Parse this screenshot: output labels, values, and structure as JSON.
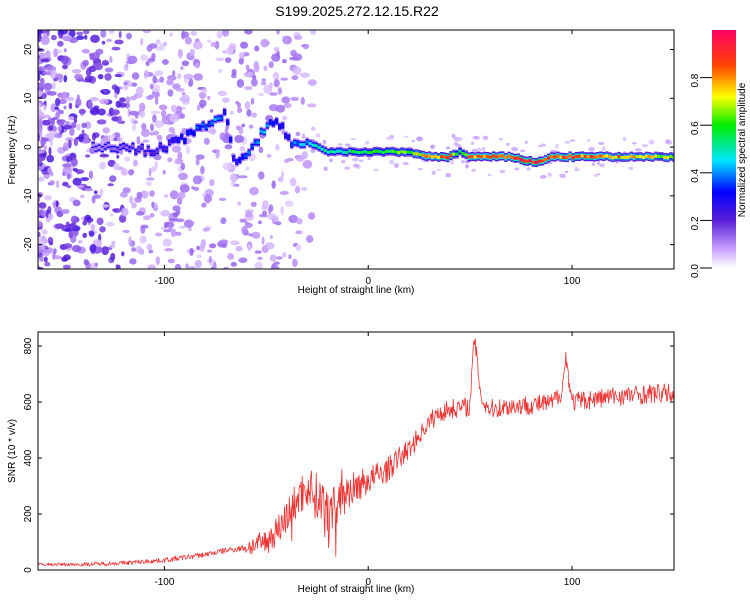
{
  "title": "S199.2025.272.12.15.R22",
  "chart_data": [
    {
      "type": "heatmap",
      "title": "S199.2025.272.12.15.R22",
      "xlabel": "Height of straight line (km)",
      "ylabel": "Frequency (Hz)",
      "xlim": [
        -162,
        150
      ],
      "ylim": [
        -25,
        24
      ],
      "xticks": [
        -100,
        0,
        100
      ],
      "yticks": [
        20,
        10,
        0,
        -10,
        -20
      ],
      "ridge": {
        "x": [
          -135,
          -120,
          -105,
          -95,
          -85,
          -75,
          -70,
          -65,
          -60,
          -55,
          -50,
          -45,
          -40,
          -35,
          -30,
          -20,
          -10,
          0,
          10,
          20,
          30,
          40,
          45,
          50,
          60,
          70,
          80,
          85,
          90,
          100,
          110,
          120,
          130,
          140,
          150
        ],
        "freq": [
          0,
          0,
          -1,
          1,
          3,
          6,
          7,
          -4,
          -2,
          1,
          4,
          6,
          2,
          0,
          1,
          -1,
          -1,
          -1,
          -1,
          -1,
          -2,
          -2,
          -1,
          -2,
          -2,
          -2,
          -3,
          -3,
          -2,
          -2,
          -2,
          -2,
          -2,
          -2,
          -2
        ],
        "amplitude": [
          0.1,
          0.15,
          0.2,
          0.25,
          0.35,
          0.4,
          0.3,
          0.25,
          0.35,
          0.4,
          0.45,
          0.3,
          0.25,
          0.4,
          0.45,
          0.5,
          0.55,
          0.55,
          0.6,
          0.65,
          0.8,
          0.85,
          0.5,
          0.85,
          0.85,
          0.9,
          0.95,
          0.9,
          0.85,
          0.85,
          0.85,
          0.8,
          0.8,
          0.75,
          0.7
        ]
      },
      "colorbar": {
        "label": "Normalized spectral amplitude",
        "range": [
          0,
          1
        ],
        "ticks": [
          "0.0",
          "0.2",
          "0.4",
          "0.6",
          "0.8"
        ]
      }
    },
    {
      "type": "line",
      "xlabel": "Height of straight line (km)",
      "ylabel": "SNR (10 * v/v)",
      "xlim": [
        -162,
        150
      ],
      "ylim": [
        0,
        850
      ],
      "xticks": [
        -100,
        0,
        100
      ],
      "yticks": [
        0,
        200,
        400,
        600,
        800
      ],
      "color": "#ee3333",
      "series": [
        {
          "name": "SNR",
          "x": [
            -162,
            -140,
            -120,
            -100,
            -80,
            -70,
            -60,
            -50,
            -45,
            -40,
            -35,
            -30,
            -25,
            -20,
            -15,
            -10,
            -5,
            0,
            5,
            10,
            15,
            20,
            25,
            30,
            35,
            40,
            45,
            50,
            52,
            54,
            56,
            60,
            70,
            80,
            90,
            95,
            97,
            100,
            110,
            120,
            130,
            140,
            150
          ],
          "values": [
            20,
            20,
            25,
            35,
            55,
            70,
            80,
            100,
            140,
            190,
            250,
            300,
            260,
            230,
            260,
            280,
            300,
            320,
            340,
            360,
            400,
            430,
            480,
            530,
            560,
            575,
            580,
            585,
            840,
            700,
            600,
            575,
            585,
            590,
            595,
            640,
            760,
            600,
            610,
            620,
            625,
            630,
            630
          ]
        }
      ]
    }
  ]
}
